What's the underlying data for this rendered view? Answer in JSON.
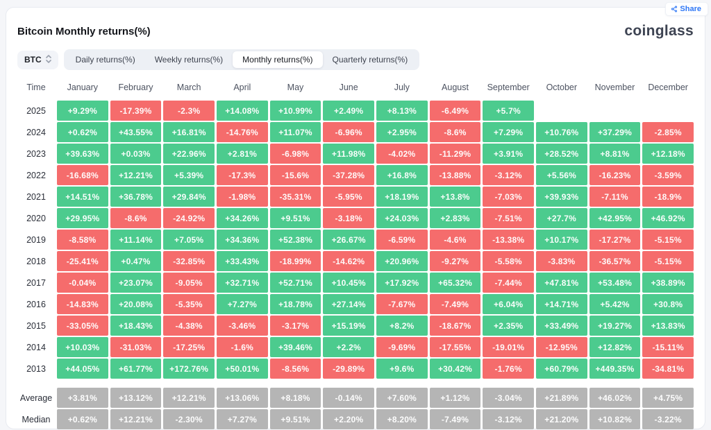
{
  "title": "Bitcoin Monthly returns(%)",
  "logo": "coinglass",
  "share": {
    "label": "Share",
    "icon": "share-nodes-icon"
  },
  "symbol_select": {
    "value": "BTC",
    "icon": "updown-chevron-icon"
  },
  "tabs": [
    {
      "label": "Daily returns(%)",
      "active": false
    },
    {
      "label": "Weekly returns(%)",
      "active": false
    },
    {
      "label": "Monthly returns(%)",
      "active": true
    },
    {
      "label": "Quarterly returns(%)",
      "active": false
    }
  ],
  "colors": {
    "positive": "#4ccb8e",
    "negative": "#f56c6c",
    "neutral": "#b5b5b5",
    "accent_blue": "#2e77f6"
  },
  "chart_data": {
    "type": "heatmap",
    "title": "Bitcoin Monthly returns(%)",
    "columns": [
      "Time",
      "January",
      "February",
      "March",
      "April",
      "May",
      "June",
      "July",
      "August",
      "September",
      "October",
      "November",
      "December"
    ],
    "rows": [
      {
        "label": "2025",
        "neutral": false,
        "values": [
          "+9.29%",
          "-17.39%",
          "-2.3%",
          "+14.08%",
          "+10.99%",
          "+2.49%",
          "+8.13%",
          "-6.49%",
          "+5.7%",
          "",
          "",
          ""
        ]
      },
      {
        "label": "2024",
        "neutral": false,
        "values": [
          "+0.62%",
          "+43.55%",
          "+16.81%",
          "-14.76%",
          "+11.07%",
          "-6.96%",
          "+2.95%",
          "-8.6%",
          "+7.29%",
          "+10.76%",
          "+37.29%",
          "-2.85%"
        ]
      },
      {
        "label": "2023",
        "neutral": false,
        "values": [
          "+39.63%",
          "+0.03%",
          "+22.96%",
          "+2.81%",
          "-6.98%",
          "+11.98%",
          "-4.02%",
          "-11.29%",
          "+3.91%",
          "+28.52%",
          "+8.81%",
          "+12.18%"
        ]
      },
      {
        "label": "2022",
        "neutral": false,
        "values": [
          "-16.68%",
          "+12.21%",
          "+5.39%",
          "-17.3%",
          "-15.6%",
          "-37.28%",
          "+16.8%",
          "-13.88%",
          "-3.12%",
          "+5.56%",
          "-16.23%",
          "-3.59%"
        ]
      },
      {
        "label": "2021",
        "neutral": false,
        "values": [
          "+14.51%",
          "+36.78%",
          "+29.84%",
          "-1.98%",
          "-35.31%",
          "-5.95%",
          "+18.19%",
          "+13.8%",
          "-7.03%",
          "+39.93%",
          "-7.11%",
          "-18.9%"
        ]
      },
      {
        "label": "2020",
        "neutral": false,
        "values": [
          "+29.95%",
          "-8.6%",
          "-24.92%",
          "+34.26%",
          "+9.51%",
          "-3.18%",
          "+24.03%",
          "+2.83%",
          "-7.51%",
          "+27.7%",
          "+42.95%",
          "+46.92%"
        ]
      },
      {
        "label": "2019",
        "neutral": false,
        "values": [
          "-8.58%",
          "+11.14%",
          "+7.05%",
          "+34.36%",
          "+52.38%",
          "+26.67%",
          "-6.59%",
          "-4.6%",
          "-13.38%",
          "+10.17%",
          "-17.27%",
          "-5.15%"
        ]
      },
      {
        "label": "2018",
        "neutral": false,
        "values": [
          "-25.41%",
          "+0.47%",
          "-32.85%",
          "+33.43%",
          "-18.99%",
          "-14.62%",
          "+20.96%",
          "-9.27%",
          "-5.58%",
          "-3.83%",
          "-36.57%",
          "-5.15%"
        ]
      },
      {
        "label": "2017",
        "neutral": false,
        "values": [
          "-0.04%",
          "+23.07%",
          "-9.05%",
          "+32.71%",
          "+52.71%",
          "+10.45%",
          "+17.92%",
          "+65.32%",
          "-7.44%",
          "+47.81%",
          "+53.48%",
          "+38.89%"
        ]
      },
      {
        "label": "2016",
        "neutral": false,
        "values": [
          "-14.83%",
          "+20.08%",
          "-5.35%",
          "+7.27%",
          "+18.78%",
          "+27.14%",
          "-7.67%",
          "-7.49%",
          "+6.04%",
          "+14.71%",
          "+5.42%",
          "+30.8%"
        ]
      },
      {
        "label": "2015",
        "neutral": false,
        "values": [
          "-33.05%",
          "+18.43%",
          "-4.38%",
          "-3.46%",
          "-3.17%",
          "+15.19%",
          "+8.2%",
          "-18.67%",
          "+2.35%",
          "+33.49%",
          "+19.27%",
          "+13.83%"
        ]
      },
      {
        "label": "2014",
        "neutral": false,
        "values": [
          "+10.03%",
          "-31.03%",
          "-17.25%",
          "-1.6%",
          "+39.46%",
          "+2.2%",
          "-9.69%",
          "-17.55%",
          "-19.01%",
          "-12.95%",
          "+12.82%",
          "-15.11%"
        ]
      },
      {
        "label": "2013",
        "neutral": false,
        "values": [
          "+44.05%",
          "+61.77%",
          "+172.76%",
          "+50.01%",
          "-8.56%",
          "-29.89%",
          "+9.6%",
          "+30.42%",
          "-1.76%",
          "+60.79%",
          "+449.35%",
          "-34.81%"
        ]
      },
      {
        "label": "Average",
        "neutral": true,
        "summary_first": true,
        "values": [
          "+3.81%",
          "+13.12%",
          "+12.21%",
          "+13.06%",
          "+8.18%",
          "-0.14%",
          "+7.60%",
          "+1.12%",
          "-3.04%",
          "+21.89%",
          "+46.02%",
          "+4.75%"
        ]
      },
      {
        "label": "Median",
        "neutral": true,
        "values": [
          "+0.62%",
          "+12.21%",
          "-2.30%",
          "+7.27%",
          "+9.51%",
          "+2.20%",
          "+8.20%",
          "-7.49%",
          "-3.12%",
          "+21.20%",
          "+10.82%",
          "-3.22%"
        ]
      }
    ]
  }
}
